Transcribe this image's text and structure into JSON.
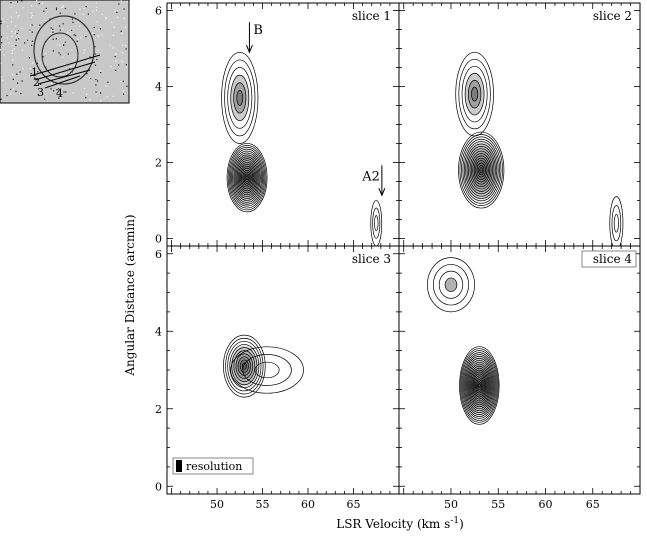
{
  "chart_data": {
    "type": "contour",
    "xlabel": "LSR Velocity (km s",
    "xlabel_sup": "-1",
    "xlabel_end": ")",
    "ylabel": "Angular Distance (arcmin)",
    "xlim": [
      44.5,
      70
    ],
    "ylim": [
      -0.2,
      6.2
    ],
    "x_ticks": [
      "50",
      "55",
      "60",
      "65"
    ],
    "y_ticks": [
      "0",
      "2",
      "4",
      "6"
    ],
    "panels": [
      {
        "label": "slice 1",
        "label_boxed": false,
        "peaks": [
          {
            "x": 53.3,
            "y": 1.6,
            "sx": 2.2,
            "sy": 0.9,
            "levels": 18
          },
          {
            "x": 52.5,
            "y": 3.7,
            "sx": 2.0,
            "sy": 1.2,
            "levels": 6
          },
          {
            "x": 67.5,
            "y": 0.4,
            "sx": 0.6,
            "sy": 0.6,
            "levels": 3
          }
        ],
        "annotations": [
          {
            "text": "B",
            "x": 54.0,
            "y": 5.3
          },
          {
            "text": "A2",
            "x": 66.8,
            "y": 1.4
          }
        ]
      },
      {
        "label": "slice 2",
        "label_boxed": false,
        "peaks": [
          {
            "x": 53.2,
            "y": 1.8,
            "sx": 2.4,
            "sy": 1.0,
            "levels": 16
          },
          {
            "x": 52.5,
            "y": 3.8,
            "sx": 2.0,
            "sy": 1.1,
            "levels": 6
          },
          {
            "x": 67.5,
            "y": 0.4,
            "sx": 0.7,
            "sy": 0.7,
            "levels": 3
          }
        ],
        "annotations": []
      },
      {
        "label": "slice 3",
        "label_boxed": false,
        "peaks": [
          {
            "x": 53.0,
            "y": 3.1,
            "sx": 2.3,
            "sy": 0.8,
            "levels": 10
          },
          {
            "x": 55.5,
            "y": 3.0,
            "sx": 4.0,
            "sy": 0.6,
            "levels": 3
          }
        ],
        "annotations": []
      },
      {
        "label": "slice 4",
        "label_boxed": true,
        "peaks": [
          {
            "x": 53.0,
            "y": 2.6,
            "sx": 2.1,
            "sy": 1.0,
            "levels": 20
          },
          {
            "x": 50.0,
            "y": 5.2,
            "sx": 2.5,
            "sy": 0.7,
            "levels": 4
          }
        ],
        "annotations": []
      }
    ],
    "legend": {
      "label": "resolution",
      "position": "bottom-left"
    },
    "inset": {
      "slice_numbers": [
        "1",
        "2",
        "3",
        "4"
      ]
    }
  }
}
